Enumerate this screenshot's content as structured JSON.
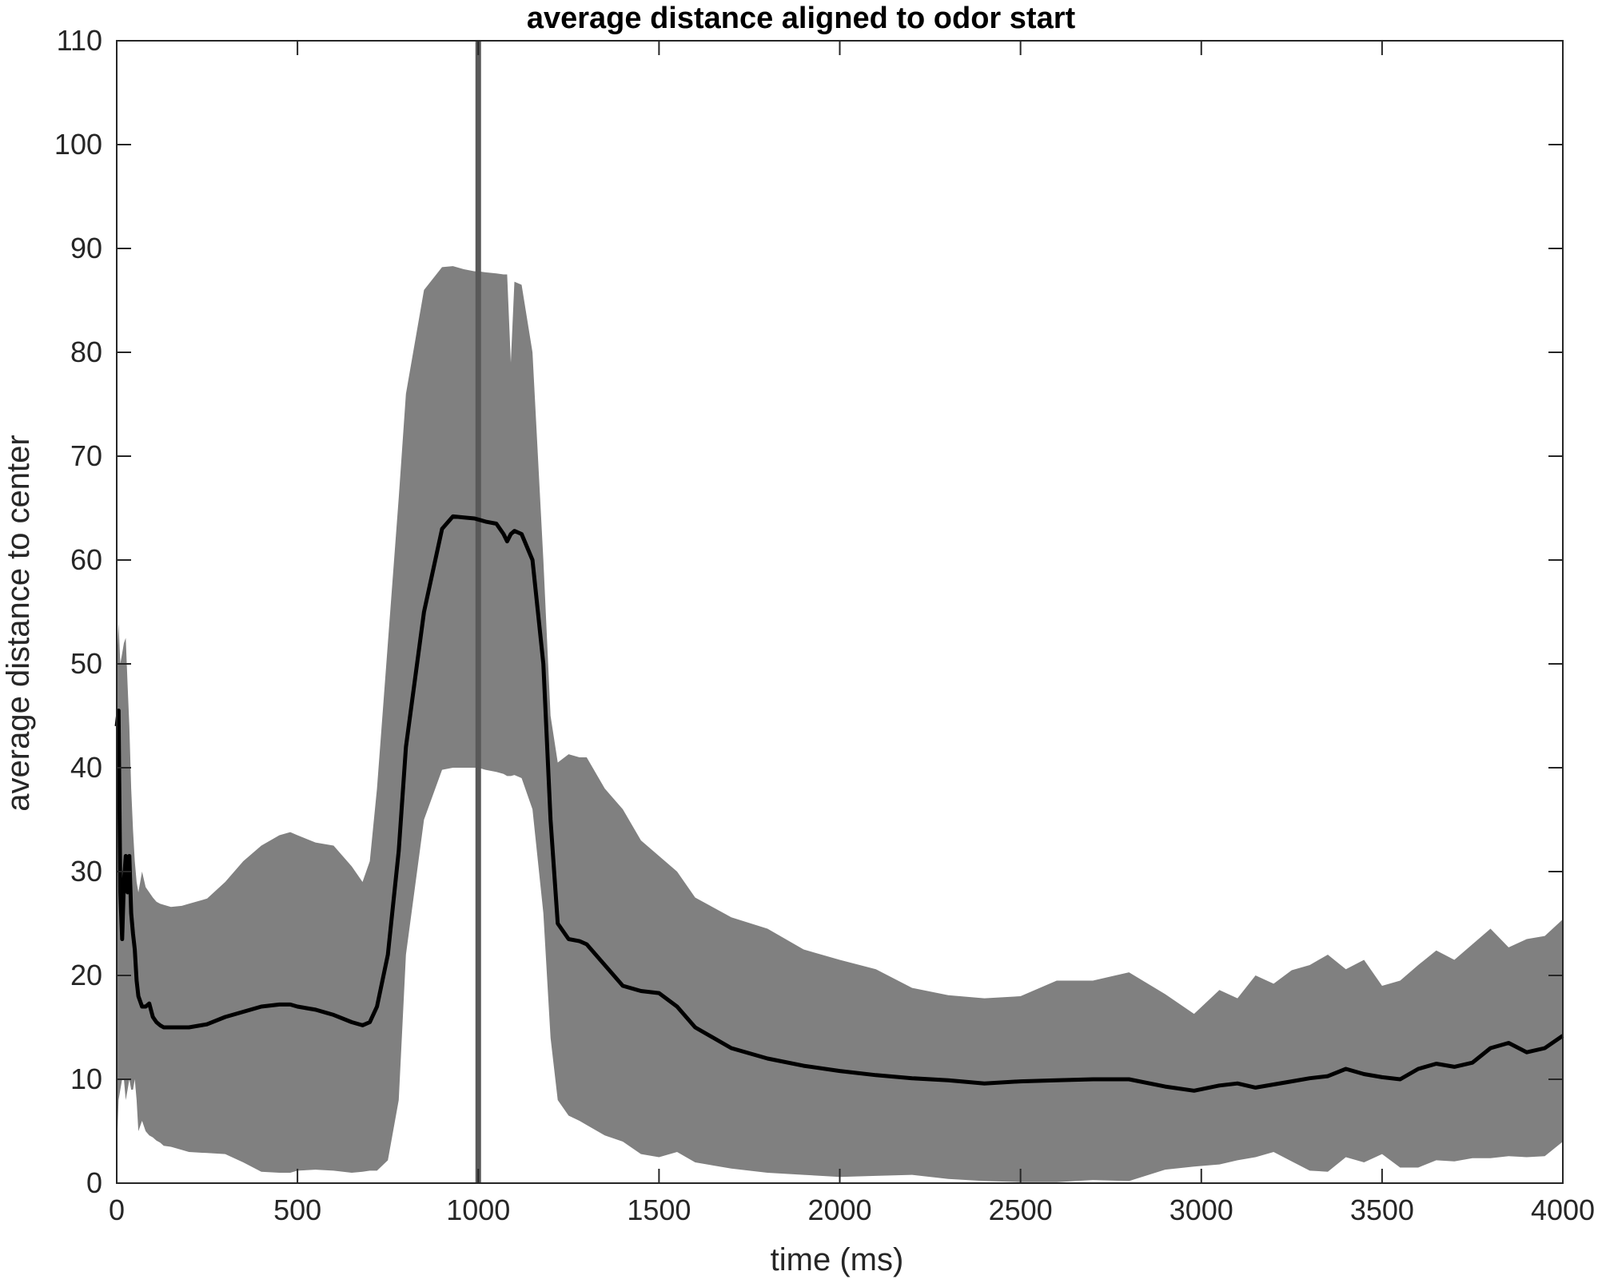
{
  "chart_data": {
    "type": "area",
    "title": "average distance aligned to odor start",
    "xlabel": "time (ms)",
    "ylabel": "average distance to center",
    "xlim": [
      0,
      4000
    ],
    "ylim": [
      0,
      110
    ],
    "xticks": [
      0,
      500,
      1000,
      1500,
      2000,
      2500,
      3000,
      3500,
      4000
    ],
    "yticks": [
      0,
      10,
      20,
      30,
      40,
      50,
      60,
      70,
      80,
      90,
      100,
      110
    ],
    "grid": false,
    "legend": "none",
    "vertical_marker": {
      "x": 1000,
      "color": "#595959"
    },
    "colors": {
      "band": "#808080",
      "mean": "#000000",
      "axes": "#262626"
    },
    "series": [
      {
        "x": [
          0,
          5,
          10,
          15,
          20,
          25,
          30,
          35,
          40,
          45,
          50,
          55,
          60,
          70,
          80,
          90,
          100,
          110,
          120,
          130,
          150,
          180,
          200,
          250,
          300,
          350,
          400,
          450,
          480,
          500,
          550,
          600,
          650,
          680,
          700,
          720,
          750,
          780,
          800,
          850,
          900,
          930,
          960,
          990,
          1000,
          1020,
          1050,
          1070,
          1080,
          1090,
          1100,
          1120,
          1150,
          1180,
          1200,
          1220,
          1250,
          1280,
          1300,
          1350,
          1400,
          1450,
          1500,
          1550,
          1600,
          1700,
          1800,
          1900,
          2000,
          2100,
          2200,
          2300,
          2400,
          2500,
          2600,
          2700,
          2800,
          2900,
          2980,
          3050,
          3100,
          3150,
          3200,
          3250,
          3300,
          3350,
          3400,
          3450,
          3500,
          3550,
          3600,
          3650,
          3700,
          3750,
          3800,
          3850,
          3900,
          3950,
          4000
        ],
        "mean": [
          44,
          45.5,
          28,
          23.5,
          29,
          31.5,
          28,
          31.5,
          26,
          24,
          22.5,
          19.5,
          18,
          17,
          17,
          17.3,
          16,
          15.5,
          15.2,
          15,
          15,
          15,
          15,
          15.3,
          16,
          16.5,
          17,
          17.2,
          17.2,
          17,
          16.7,
          16.2,
          15.5,
          15.2,
          15.5,
          17,
          22,
          32,
          42,
          55,
          63,
          64.2,
          64.1,
          64,
          63.9,
          63.7,
          63.5,
          62.5,
          61.8,
          62.5,
          62.8,
          62.5,
          60,
          50,
          35,
          25,
          23.5,
          23.3,
          23,
          21,
          19,
          18.5,
          18.3,
          17,
          15,
          13,
          12,
          11.3,
          10.8,
          10.4,
          10.1,
          9.9,
          9.6,
          9.8,
          9.9,
          10,
          10,
          9.3,
          8.9,
          9.4,
          9.6,
          9.2,
          9.5,
          9.8,
          10.1,
          10.3,
          11,
          10.5,
          10.2,
          10,
          11,
          11.5,
          11.2,
          11.6,
          13,
          13.5,
          12.6,
          13,
          14.2
        ],
        "upper": [
          50,
          54,
          50,
          51,
          52,
          52.5,
          48,
          44,
          38,
          34,
          31,
          29,
          28,
          30,
          28.5,
          28,
          27.5,
          27.1,
          26.9,
          26.8,
          26.6,
          26.7,
          26.9,
          27.4,
          29,
          31,
          32.5,
          33.5,
          33.8,
          33.5,
          32.8,
          32.5,
          30.5,
          29,
          31,
          38,
          52,
          66,
          76,
          86,
          88.2,
          88.3,
          88,
          87.8,
          87.8,
          87.7,
          87.6,
          87.5,
          87.5,
          79,
          86.8,
          86.5,
          80,
          60,
          45,
          40.5,
          41.3,
          41,
          41,
          38,
          36,
          33,
          31.5,
          30,
          27.5,
          25.6,
          24.5,
          22.5,
          21.5,
          20.6,
          18.8,
          18.1,
          17.8,
          18,
          19.5,
          19.5,
          20.3,
          18.2,
          16.3,
          18.6,
          17.8,
          20,
          19.2,
          20.5,
          21,
          22,
          20.6,
          21.5,
          19,
          19.5,
          21,
          22.4,
          21.5,
          23,
          24.5,
          22.7,
          23.5,
          23.8,
          25.4
        ],
        "lower": [
          3,
          8,
          9,
          10,
          10,
          8,
          9,
          10,
          9,
          9,
          10,
          8,
          5,
          6,
          5,
          4.6,
          4.4,
          4.1,
          3.9,
          3.6,
          3.5,
          3.2,
          3,
          2.9,
          2.8,
          2,
          1.1,
          1,
          1,
          1.2,
          1.3,
          1.2,
          1,
          1.1,
          1.2,
          1.2,
          2.2,
          8,
          22,
          35,
          39.8,
          40,
          40,
          40,
          40,
          39.8,
          39.6,
          39.4,
          39.2,
          39.2,
          39.3,
          39,
          36,
          26,
          14,
          8,
          6.5,
          6,
          5.6,
          4.6,
          4,
          2.8,
          2.5,
          3,
          2,
          1.4,
          1,
          0.8,
          0.6,
          0.7,
          0.8,
          0.4,
          0.2,
          0.1,
          0.1,
          0.3,
          0.2,
          1.3,
          1.6,
          1.8,
          2.2,
          2.5,
          3,
          2.1,
          1.2,
          1.1,
          2.5,
          2,
          2.8,
          1.5,
          1.5,
          2.2,
          2.1,
          2.4,
          2.4,
          2.6,
          2.5,
          2.6,
          4
        ]
      }
    ]
  }
}
